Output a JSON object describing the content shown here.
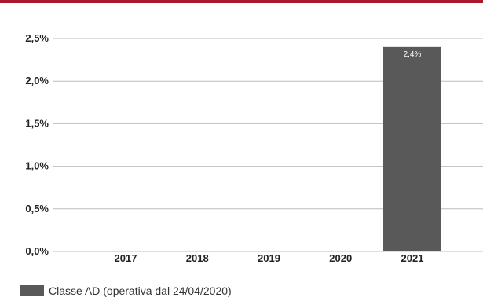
{
  "colors": {
    "accent_bar": "#a6192e",
    "bar": "#595959",
    "grid": "#bdbdbd"
  },
  "chart_data": {
    "type": "bar",
    "categories": [
      "2017",
      "2018",
      "2019",
      "2020",
      "2021"
    ],
    "series": [
      {
        "name": "Classe AD (operativa dal 24/04/2020)",
        "values": [
          null,
          null,
          null,
          null,
          2.4
        ]
      }
    ],
    "data_labels": [
      "",
      "",
      "",
      "",
      "2,4%"
    ],
    "yticks": [
      "0,0%",
      "0,5%",
      "1,0%",
      "1,5%",
      "2,0%",
      "2,5%"
    ],
    "ylim": [
      0,
      2.5
    ],
    "grid": true,
    "legend_position": "bottom-left"
  }
}
